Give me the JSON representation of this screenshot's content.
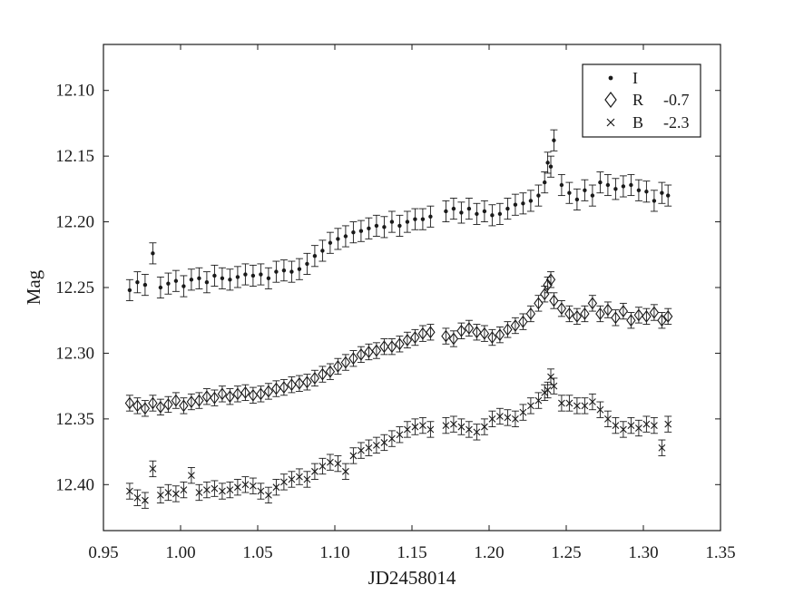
{
  "chart_data": {
    "type": "scatter",
    "title": "",
    "xlabel": "JD2458014",
    "ylabel": "Mag",
    "xlim": [
      0.95,
      1.35
    ],
    "ylim": [
      12.435,
      12.065
    ],
    "y_inverted": true,
    "grid": false,
    "legend_position": "top-right",
    "error_bars": true,
    "xticks": [
      0.95,
      1.0,
      1.05,
      1.1,
      1.15,
      1.2,
      1.25,
      1.3,
      1.35
    ],
    "xtick_labels": [
      "0.95",
      "1.00",
      "1.05",
      "1.10",
      "1.15",
      "1.20",
      "1.25",
      "1.30",
      "1.35"
    ],
    "yticks": [
      12.1,
      12.15,
      12.2,
      12.25,
      12.3,
      12.35,
      12.4
    ],
    "ytick_labels": [
      "12.10",
      "12.15",
      "12.20",
      "12.25",
      "12.30",
      "12.35",
      "12.40"
    ],
    "series": [
      {
        "name": "I",
        "offset_label": "",
        "marker": "dot",
        "error": 0.008,
        "x": [
          0.967,
          0.972,
          0.977,
          0.982,
          0.987,
          0.992,
          0.997,
          1.002,
          1.007,
          1.012,
          1.017,
          1.022,
          1.027,
          1.032,
          1.037,
          1.042,
          1.047,
          1.052,
          1.057,
          1.062,
          1.067,
          1.072,
          1.077,
          1.082,
          1.087,
          1.092,
          1.097,
          1.102,
          1.107,
          1.112,
          1.117,
          1.122,
          1.127,
          1.132,
          1.137,
          1.142,
          1.147,
          1.152,
          1.157,
          1.162,
          1.172,
          1.177,
          1.182,
          1.187,
          1.192,
          1.197,
          1.202,
          1.207,
          1.212,
          1.217,
          1.222,
          1.227,
          1.232,
          1.236,
          1.238,
          1.24,
          1.242,
          1.247,
          1.252,
          1.257,
          1.262,
          1.267,
          1.272,
          1.277,
          1.282,
          1.287,
          1.292,
          1.297,
          1.302,
          1.307,
          1.312,
          1.316
        ],
        "y": [
          12.252,
          12.246,
          12.248,
          12.224,
          12.25,
          12.247,
          12.245,
          12.249,
          12.244,
          12.243,
          12.246,
          12.241,
          12.243,
          12.244,
          12.242,
          12.24,
          12.241,
          12.24,
          12.243,
          12.238,
          12.237,
          12.238,
          12.236,
          12.232,
          12.226,
          12.222,
          12.216,
          12.213,
          12.211,
          12.208,
          12.207,
          12.205,
          12.203,
          12.204,
          12.2,
          12.203,
          12.2,
          12.198,
          12.198,
          12.196,
          12.192,
          12.19,
          12.193,
          12.19,
          12.194,
          12.192,
          12.195,
          12.194,
          12.19,
          12.187,
          12.186,
          12.184,
          12.18,
          12.17,
          12.155,
          12.158,
          12.138,
          12.172,
          12.178,
          12.183,
          12.176,
          12.18,
          12.17,
          12.172,
          12.175,
          12.173,
          12.172,
          12.176,
          12.177,
          12.184,
          12.178,
          12.18
        ]
      },
      {
        "name": "R",
        "offset_label": "-0.7",
        "marker": "diamond",
        "error": 0.006,
        "x": [
          0.967,
          0.972,
          0.977,
          0.982,
          0.987,
          0.992,
          0.997,
          1.002,
          1.007,
          1.012,
          1.017,
          1.022,
          1.027,
          1.032,
          1.037,
          1.042,
          1.047,
          1.052,
          1.057,
          1.062,
          1.067,
          1.072,
          1.077,
          1.082,
          1.087,
          1.092,
          1.097,
          1.102,
          1.107,
          1.112,
          1.117,
          1.122,
          1.127,
          1.132,
          1.137,
          1.142,
          1.147,
          1.152,
          1.157,
          1.162,
          1.172,
          1.177,
          1.182,
          1.187,
          1.192,
          1.197,
          1.202,
          1.207,
          1.212,
          1.217,
          1.222,
          1.227,
          1.232,
          1.236,
          1.238,
          1.24,
          1.242,
          1.247,
          1.252,
          1.257,
          1.262,
          1.267,
          1.272,
          1.277,
          1.282,
          1.287,
          1.292,
          1.297,
          1.302,
          1.307,
          1.312,
          1.316
        ],
        "y": [
          12.338,
          12.34,
          12.342,
          12.338,
          12.341,
          12.339,
          12.336,
          12.34,
          12.337,
          12.336,
          12.333,
          12.334,
          12.331,
          12.333,
          12.331,
          12.33,
          12.332,
          12.331,
          12.329,
          12.327,
          12.326,
          12.324,
          12.323,
          12.322,
          12.319,
          12.316,
          12.314,
          12.31,
          12.307,
          12.304,
          12.301,
          12.299,
          12.298,
          12.295,
          12.295,
          12.293,
          12.29,
          12.288,
          12.285,
          12.284,
          12.287,
          12.289,
          12.283,
          12.281,
          12.284,
          12.285,
          12.288,
          12.286,
          12.282,
          12.279,
          12.276,
          12.27,
          12.262,
          12.255,
          12.248,
          12.244,
          12.26,
          12.266,
          12.27,
          12.272,
          12.27,
          12.262,
          12.27,
          12.267,
          12.273,
          12.268,
          12.275,
          12.271,
          12.272,
          12.269,
          12.275,
          12.272
        ]
      },
      {
        "name": "B",
        "offset_label": "-2.3",
        "marker": "cross",
        "error": 0.006,
        "x": [
          0.967,
          0.972,
          0.977,
          0.982,
          0.987,
          0.992,
          0.997,
          1.002,
          1.007,
          1.012,
          1.017,
          1.022,
          1.027,
          1.032,
          1.037,
          1.042,
          1.047,
          1.052,
          1.057,
          1.062,
          1.067,
          1.072,
          1.077,
          1.082,
          1.087,
          1.092,
          1.097,
          1.102,
          1.107,
          1.112,
          1.117,
          1.122,
          1.127,
          1.132,
          1.137,
          1.142,
          1.147,
          1.152,
          1.157,
          1.162,
          1.172,
          1.177,
          1.182,
          1.187,
          1.192,
          1.197,
          1.202,
          1.207,
          1.212,
          1.217,
          1.222,
          1.227,
          1.232,
          1.236,
          1.238,
          1.24,
          1.242,
          1.247,
          1.252,
          1.257,
          1.262,
          1.267,
          1.272,
          1.277,
          1.282,
          1.287,
          1.292,
          1.297,
          1.302,
          1.307,
          1.312,
          1.316
        ],
        "y": [
          12.405,
          12.41,
          12.412,
          12.388,
          12.408,
          12.406,
          12.407,
          12.404,
          12.393,
          12.406,
          12.404,
          12.403,
          12.405,
          12.404,
          12.402,
          12.4,
          12.401,
          12.405,
          12.408,
          12.402,
          12.398,
          12.396,
          12.394,
          12.396,
          12.39,
          12.386,
          12.383,
          12.384,
          12.39,
          12.378,
          12.374,
          12.372,
          12.37,
          12.368,
          12.365,
          12.362,
          12.358,
          12.356,
          12.355,
          12.358,
          12.355,
          12.354,
          12.356,
          12.358,
          12.36,
          12.356,
          12.35,
          12.348,
          12.349,
          12.35,
          12.345,
          12.34,
          12.336,
          12.33,
          12.328,
          12.318,
          12.325,
          12.338,
          12.338,
          12.34,
          12.34,
          12.337,
          12.343,
          12.35,
          12.355,
          12.358,
          12.355,
          12.357,
          12.354,
          12.355,
          12.372,
          12.354
        ]
      }
    ]
  }
}
